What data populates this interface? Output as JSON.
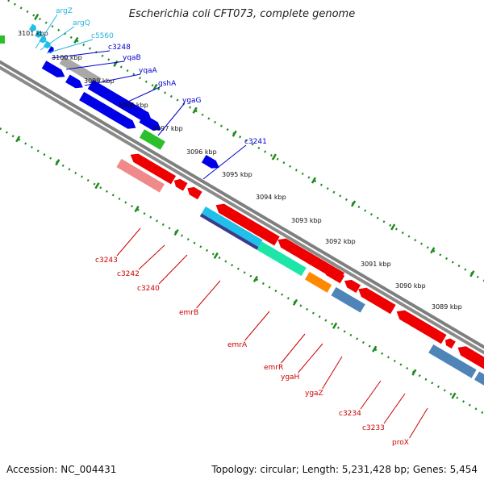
{
  "title": "Escherichia coli CFT073, complete genome",
  "footer": {
    "accession": "Accession: NC_004431",
    "summary": "Topology: circular; Length: 5,231,428 bp; Genes: 5,454"
  },
  "colors": {
    "backbone": "#7a7a7a",
    "ruler": "#1f8a1f",
    "fwd_blue": "#0000e6",
    "rev_red": "#ee0000",
    "light_red": "#f08a8a",
    "cyan": "#21c0e8",
    "teal": "#1ee6a8",
    "orange": "#ff8800",
    "steel": "#4f84b8",
    "green": "#2bbf2b",
    "gray": "#a8a8a8",
    "label_blue": "#0000cc",
    "label_red": "#cc0000",
    "label_cyan": "#21b5e0"
  },
  "ticks": [
    "3101 kbp",
    "3100 kbp",
    "3099 kbp",
    "3098 kbp",
    "3097 kbp",
    "3096 kbp",
    "3095 kbp",
    "3094 kbp",
    "3093 kbp",
    "3092 kbp",
    "3091 kbp",
    "3090 kbp",
    "3089 kbp"
  ],
  "gene_labels_top": [
    {
      "text": "argZ",
      "color": "cyan"
    },
    {
      "text": "argQ",
      "color": "cyan"
    },
    {
      "text": "c5560",
      "color": "cyan"
    },
    {
      "text": "c3248",
      "color": "blue"
    },
    {
      "text": "yqaB",
      "color": "blue"
    },
    {
      "text": "yqaA",
      "color": "blue"
    },
    {
      "text": "gshA",
      "color": "blue"
    },
    {
      "text": "ygaG",
      "color": "blue"
    },
    {
      "text": "c3241",
      "color": "blue"
    }
  ],
  "gene_labels_bottom": [
    {
      "text": "c3243"
    },
    {
      "text": "c3242"
    },
    {
      "text": "c3240"
    },
    {
      "text": "emrB"
    },
    {
      "text": "emrA"
    },
    {
      "text": "emrR"
    },
    {
      "text": "ygaH"
    },
    {
      "text": "ygaZ"
    },
    {
      "text": "c3234"
    },
    {
      "text": "c3233"
    },
    {
      "text": "proX"
    }
  ]
}
